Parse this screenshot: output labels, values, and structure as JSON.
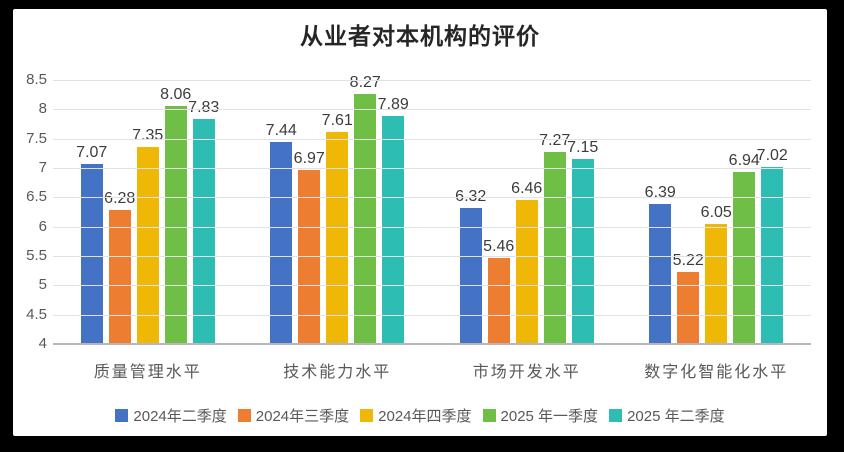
{
  "frame": {
    "background_color": "#000000",
    "card_color": "#ffffff"
  },
  "chart_data": {
    "type": "bar",
    "title": "从业者对本机构的评价",
    "categories": [
      "质量管理水平",
      "技术能力水平",
      "市场开发水平",
      "数字化智能化水平"
    ],
    "series": [
      {
        "name": "2024年二季度",
        "color": "#4472C4",
        "values": [
          7.07,
          7.44,
          6.32,
          6.39
        ]
      },
      {
        "name": "2024年三季度",
        "color": "#ED7D31",
        "values": [
          6.28,
          6.97,
          5.46,
          5.22
        ]
      },
      {
        "name": "2024年四季度",
        "color": "#EFB706",
        "values": [
          7.35,
          7.61,
          6.46,
          6.05
        ]
      },
      {
        "name": "2025 年一季度",
        "color": "#6FBE45",
        "values": [
          8.06,
          8.27,
          7.27,
          6.94
        ]
      },
      {
        "name": "2025 年二季度",
        "color": "#2EBDB2",
        "values": [
          7.83,
          7.89,
          7.15,
          7.02
        ]
      }
    ],
    "ylim": [
      4,
      8.5
    ],
    "yticks": [
      {
        "label": "8.5",
        "value": 8.5
      },
      {
        "label": "8",
        "value": 8.0
      },
      {
        "label": "7.5",
        "value": 7.5
      },
      {
        "label": "7",
        "value": 7.0
      },
      {
        "label": "6.5",
        "value": 6.5
      },
      {
        "label": "6",
        "value": 6.0
      },
      {
        "label": "5.5",
        "value": 5.5
      },
      {
        "label": "5",
        "value": 5.0
      },
      {
        "label": "4.5",
        "value": 4.5
      },
      {
        "label": "4",
        "value": 4.0
      }
    ],
    "grid": true,
    "data_labels": true,
    "data_label_decimals": 2,
    "legend_position": "bottom"
  }
}
